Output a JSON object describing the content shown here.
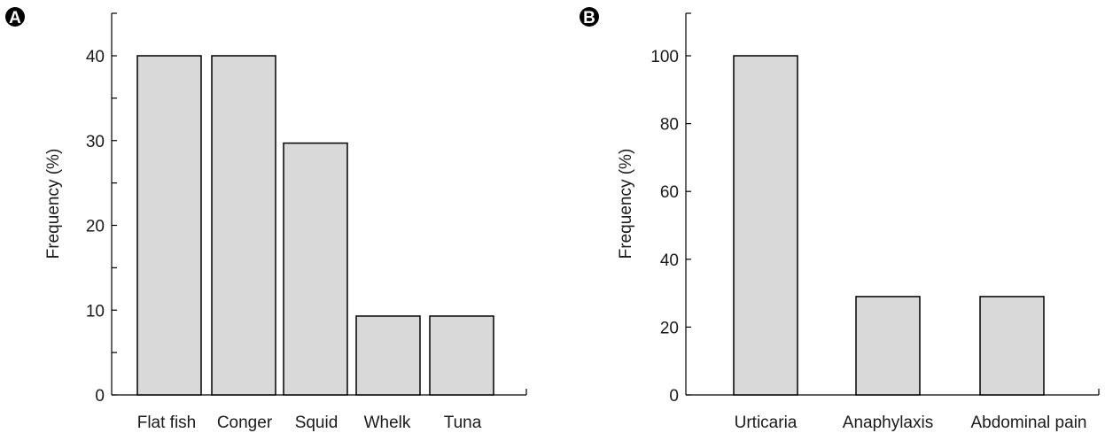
{
  "chart_data": [
    {
      "type": "bar",
      "panel_label": "A",
      "categories": [
        "Flat fish",
        "Conger",
        "Squid",
        "Whelk",
        "Tuna"
      ],
      "values": [
        40,
        40,
        29.7,
        9.3,
        9.3
      ],
      "ylabel": "Frequency (%)",
      "xlabel": "",
      "ylim": [
        0,
        45
      ],
      "yticks": [
        0,
        10,
        20,
        30,
        40
      ],
      "bar_color": "#d9d9d9",
      "edge_color": "#000000",
      "grid": false
    },
    {
      "type": "bar",
      "panel_label": "B",
      "categories": [
        "Urticaria",
        "Anaphylaxis",
        "Abdominal pain"
      ],
      "values": [
        100,
        29,
        29
      ],
      "ylabel": "Frequency (%)",
      "xlabel": "",
      "ylim": [
        0,
        113
      ],
      "yticks": [
        0,
        20,
        40,
        60,
        80,
        100
      ],
      "bar_color": "#d9d9d9",
      "edge_color": "#000000",
      "grid": false
    }
  ]
}
